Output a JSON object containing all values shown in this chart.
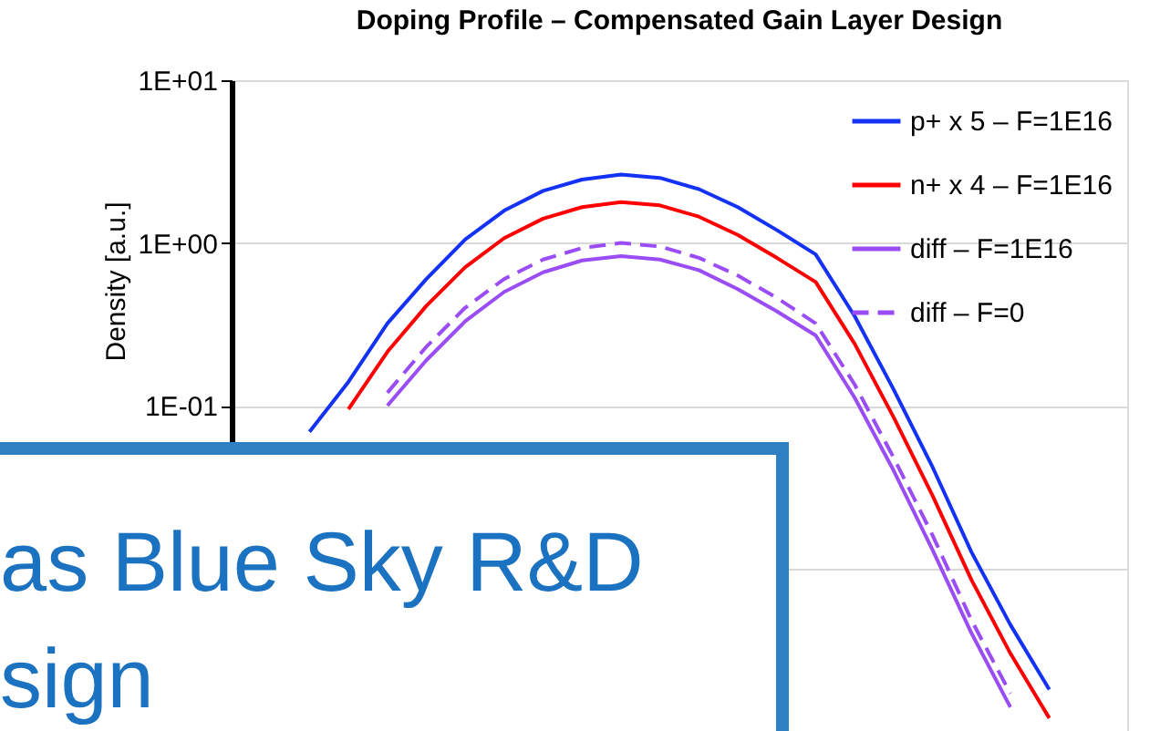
{
  "chart_data": {
    "type": "line",
    "title": "Doping Profile – Compensated Gain Layer Design",
    "ylabel": "Density [a.u.]",
    "log": "y",
    "ylim": [
      0.001,
      10
    ],
    "yticks": [
      {
        "value": 10,
        "label": "1E+01"
      },
      {
        "value": 1,
        "label": "1E+00"
      },
      {
        "value": 0.1,
        "label": "1E-01"
      },
      {
        "value": 0.01,
        "label": null
      }
    ],
    "categories": [
      null,
      null,
      null,
      null,
      null,
      null,
      null,
      null,
      null,
      null,
      null,
      null,
      null,
      null,
      null,
      null,
      null,
      null,
      null,
      null,
      null,
      null,
      null,
      null
    ],
    "tick_labels": "y",
    "grid": "y",
    "legend": "top right",
    "marker": "none",
    "series": [
      {
        "name": "p+ x 5 – F=1E16",
        "color": "#1432f5",
        "line_style": "solid",
        "values": [
          null,
          null,
          0.069,
          0.14,
          0.32,
          0.6,
          1.05,
          1.58,
          2.09,
          2.45,
          2.63,
          2.51,
          2.14,
          1.66,
          1.2,
          0.85,
          0.355,
          0.126,
          0.042,
          0.0126,
          0.0045,
          0.0018,
          null,
          null
        ]
      },
      {
        "name": "n+ x 4 – F=1E16",
        "color": "#ff0000",
        "line_style": "solid",
        "values": [
          null,
          null,
          null,
          0.095,
          0.214,
          0.41,
          0.71,
          1.07,
          1.41,
          1.66,
          1.78,
          1.7,
          1.45,
          1.12,
          0.81,
          0.575,
          0.24,
          0.085,
          0.028,
          0.0085,
          0.003,
          0.0012,
          null,
          null
        ]
      },
      {
        "name": "diff – F=1E16",
        "color": "#9a4cf5",
        "line_style": "solid",
        "values": [
          null,
          null,
          null,
          null,
          0.1,
          0.19,
          0.33,
          0.5,
          0.66,
          0.78,
          0.83,
          0.79,
          0.68,
          0.52,
          0.38,
          0.27,
          0.112,
          0.04,
          0.013,
          0.004,
          0.0014,
          null,
          null,
          null
        ]
      },
      {
        "name": "diff – F=0",
        "color": "#9a4cf5",
        "line_style": "dashed",
        "values": [
          null,
          null,
          null,
          null,
          0.12,
          0.23,
          0.4,
          0.6,
          0.79,
          0.93,
          1.0,
          0.95,
          0.81,
          0.63,
          0.46,
          0.32,
          0.135,
          0.048,
          0.016,
          0.0048,
          0.0017,
          null,
          null,
          null
        ]
      }
    ],
    "annotations": [
      "as Blue Sky R&D",
      "sign"
    ]
  }
}
